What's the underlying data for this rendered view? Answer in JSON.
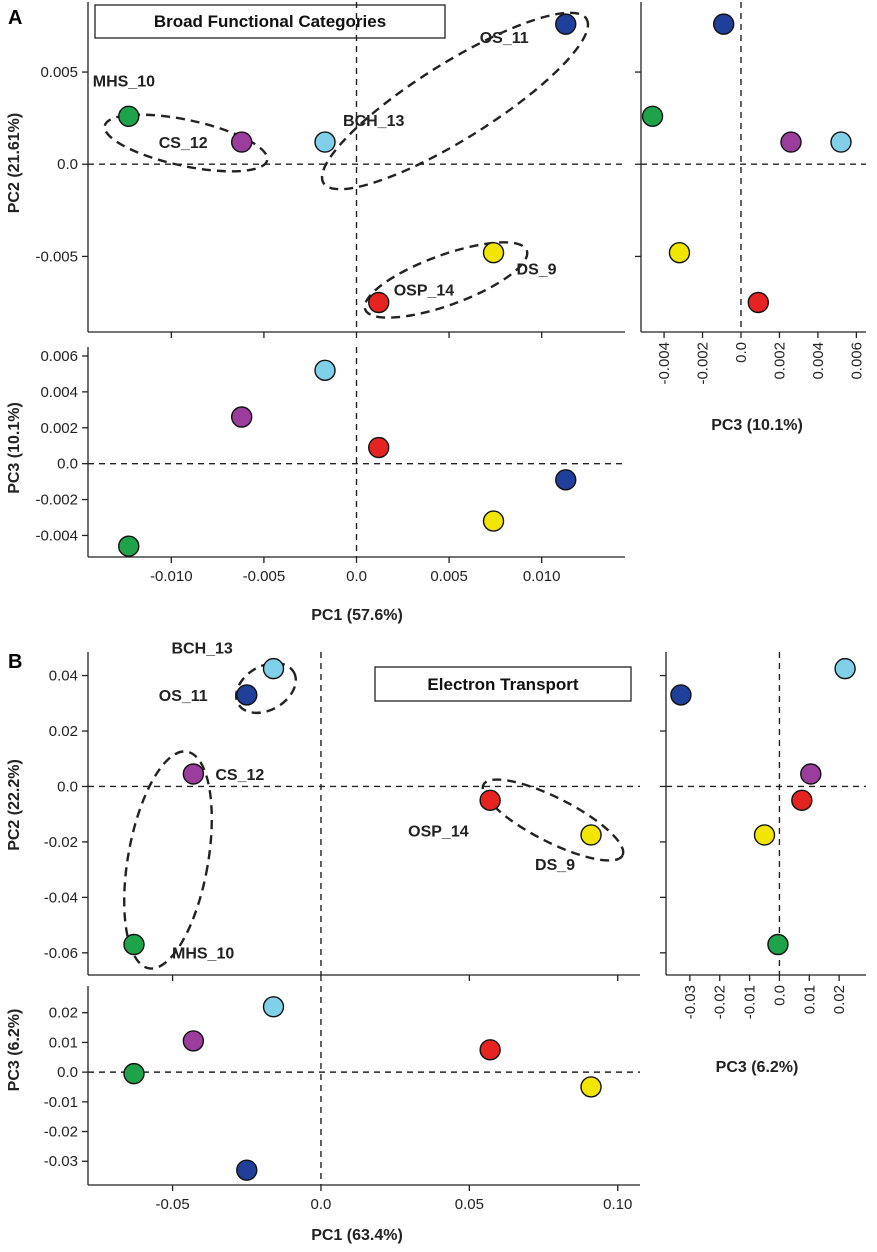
{
  "panels": [
    {
      "letter": "A",
      "title": "Broad Functional Categories",
      "axis_labels": {
        "pc1": "PC1 (57.6%)",
        "pc2": "PC2 (21.61%)",
        "pc3": "PC3 (10.1%)",
        "pc3_bottom": "PC3 (10.1%)"
      }
    },
    {
      "letter": "B",
      "title": "Electron Transport",
      "axis_labels": {
        "pc1": "PC1 (63.4%)",
        "pc2": "PC2 (22.2%)",
        "pc3": "PC3 (6.2%)",
        "pc3_bottom": "PC3 (6.2%)"
      }
    }
  ],
  "chart_data": [
    {
      "type": "scatter",
      "title": "Broad Functional Categories",
      "panel": "A",
      "axes": {
        "pc1": {
          "label": "PC1 (57.6%)",
          "range": [
            -0.0145,
            0.0145
          ],
          "ticks": [
            -0.01,
            -0.005,
            0.0,
            0.005,
            0.01
          ],
          "tick_labels": [
            "-0.010",
            "-0.005",
            "0.0",
            "0.005",
            "0.010"
          ]
        },
        "pc2": {
          "label": "PC2 (21.61%)",
          "range": [
            -0.0091,
            0.0088
          ],
          "ticks": [
            -0.005,
            0.0,
            0.005
          ],
          "tick_labels": [
            "-0.005",
            "0.0",
            "0.005"
          ]
        },
        "pc3": {
          "label": "PC3 (10.1%)",
          "range": [
            -0.0052,
            0.0065
          ],
          "ticks": [
            -0.004,
            -0.002,
            0.0,
            0.002,
            0.004,
            0.006
          ],
          "tick_labels": [
            "-0.004",
            "-0.002",
            "0.0",
            "0.002",
            "0.004",
            "0.006"
          ]
        }
      },
      "points": [
        {
          "name": "MHS_10",
          "color": "#1fa34a",
          "pc1": -0.0123,
          "pc2": 0.0026,
          "pc3": -0.0046
        },
        {
          "name": "CS_12",
          "color": "#9b3d9c",
          "pc1": -0.0062,
          "pc2": 0.0012,
          "pc3": 0.0026
        },
        {
          "name": "BCH_13",
          "color": "#7fd0e8",
          "pc1": -0.0017,
          "pc2": 0.0012,
          "pc3": 0.0052
        },
        {
          "name": "OS_11",
          "color": "#1f3f99",
          "pc1": 0.0113,
          "pc2": 0.0076,
          "pc3": -0.0009
        },
        {
          "name": "DS_9",
          "color": "#f2e600",
          "pc1": 0.0074,
          "pc2": -0.0048,
          "pc3": -0.0032
        },
        {
          "name": "OSP_14",
          "color": "#e52421",
          "pc1": 0.0012,
          "pc2": -0.0075,
          "pc3": 0.0009
        }
      ],
      "groups": [
        [
          "MHS_10",
          "CS_12"
        ],
        [
          "BCH_13",
          "OS_11"
        ],
        [
          "OSP_14",
          "DS_9"
        ]
      ]
    },
    {
      "type": "scatter",
      "title": "Electron Transport",
      "panel": "B",
      "axes": {
        "pc1": {
          "label": "PC1 (63.4%)",
          "range": [
            -0.0785,
            0.1075
          ],
          "ticks": [
            -0.05,
            0.0,
            0.05,
            0.1
          ],
          "tick_labels": [
            "-0.05",
            "0.0",
            "0.05",
            "0.10"
          ]
        },
        "pc2": {
          "label": "PC2 (22.2%)",
          "range": [
            -0.068,
            0.0485
          ],
          "ticks": [
            -0.06,
            -0.04,
            -0.02,
            0.0,
            0.02,
            0.04
          ],
          "tick_labels": [
            "-0.06",
            "-0.04",
            "-0.02",
            "0.0",
            "0.02",
            "0.04"
          ]
        },
        "pc3": {
          "label": "PC3 (6.2%)",
          "range": [
            -0.038,
            0.029
          ],
          "ticks": [
            -0.03,
            -0.02,
            -0.01,
            0.0,
            0.01,
            0.02
          ],
          "tick_labels": [
            "-0.03",
            "-0.02",
            "-0.01",
            "0.0",
            "0.01",
            "0.02"
          ]
        }
      },
      "points": [
        {
          "name": "BCH_13",
          "color": "#7fd0e8",
          "pc1": -0.016,
          "pc2": 0.0425,
          "pc3": 0.022
        },
        {
          "name": "OS_11",
          "color": "#1f3f99",
          "pc1": -0.025,
          "pc2": 0.033,
          "pc3": -0.033
        },
        {
          "name": "CS_12",
          "color": "#9b3d9c",
          "pc1": -0.043,
          "pc2": 0.0045,
          "pc3": 0.0105
        },
        {
          "name": "MHS_10",
          "color": "#1fa34a",
          "pc1": -0.063,
          "pc2": -0.057,
          "pc3": -0.0005
        },
        {
          "name": "OSP_14",
          "color": "#e52421",
          "pc1": 0.057,
          "pc2": -0.005,
          "pc3": 0.0075
        },
        {
          "name": "DS_9",
          "color": "#f2e600",
          "pc1": 0.091,
          "pc2": -0.0175,
          "pc3": -0.005
        }
      ],
      "groups": [
        [
          "BCH_13",
          "OS_11"
        ],
        [
          "CS_12",
          "MHS_10"
        ],
        [
          "OSP_14",
          "DS_9"
        ]
      ]
    }
  ]
}
